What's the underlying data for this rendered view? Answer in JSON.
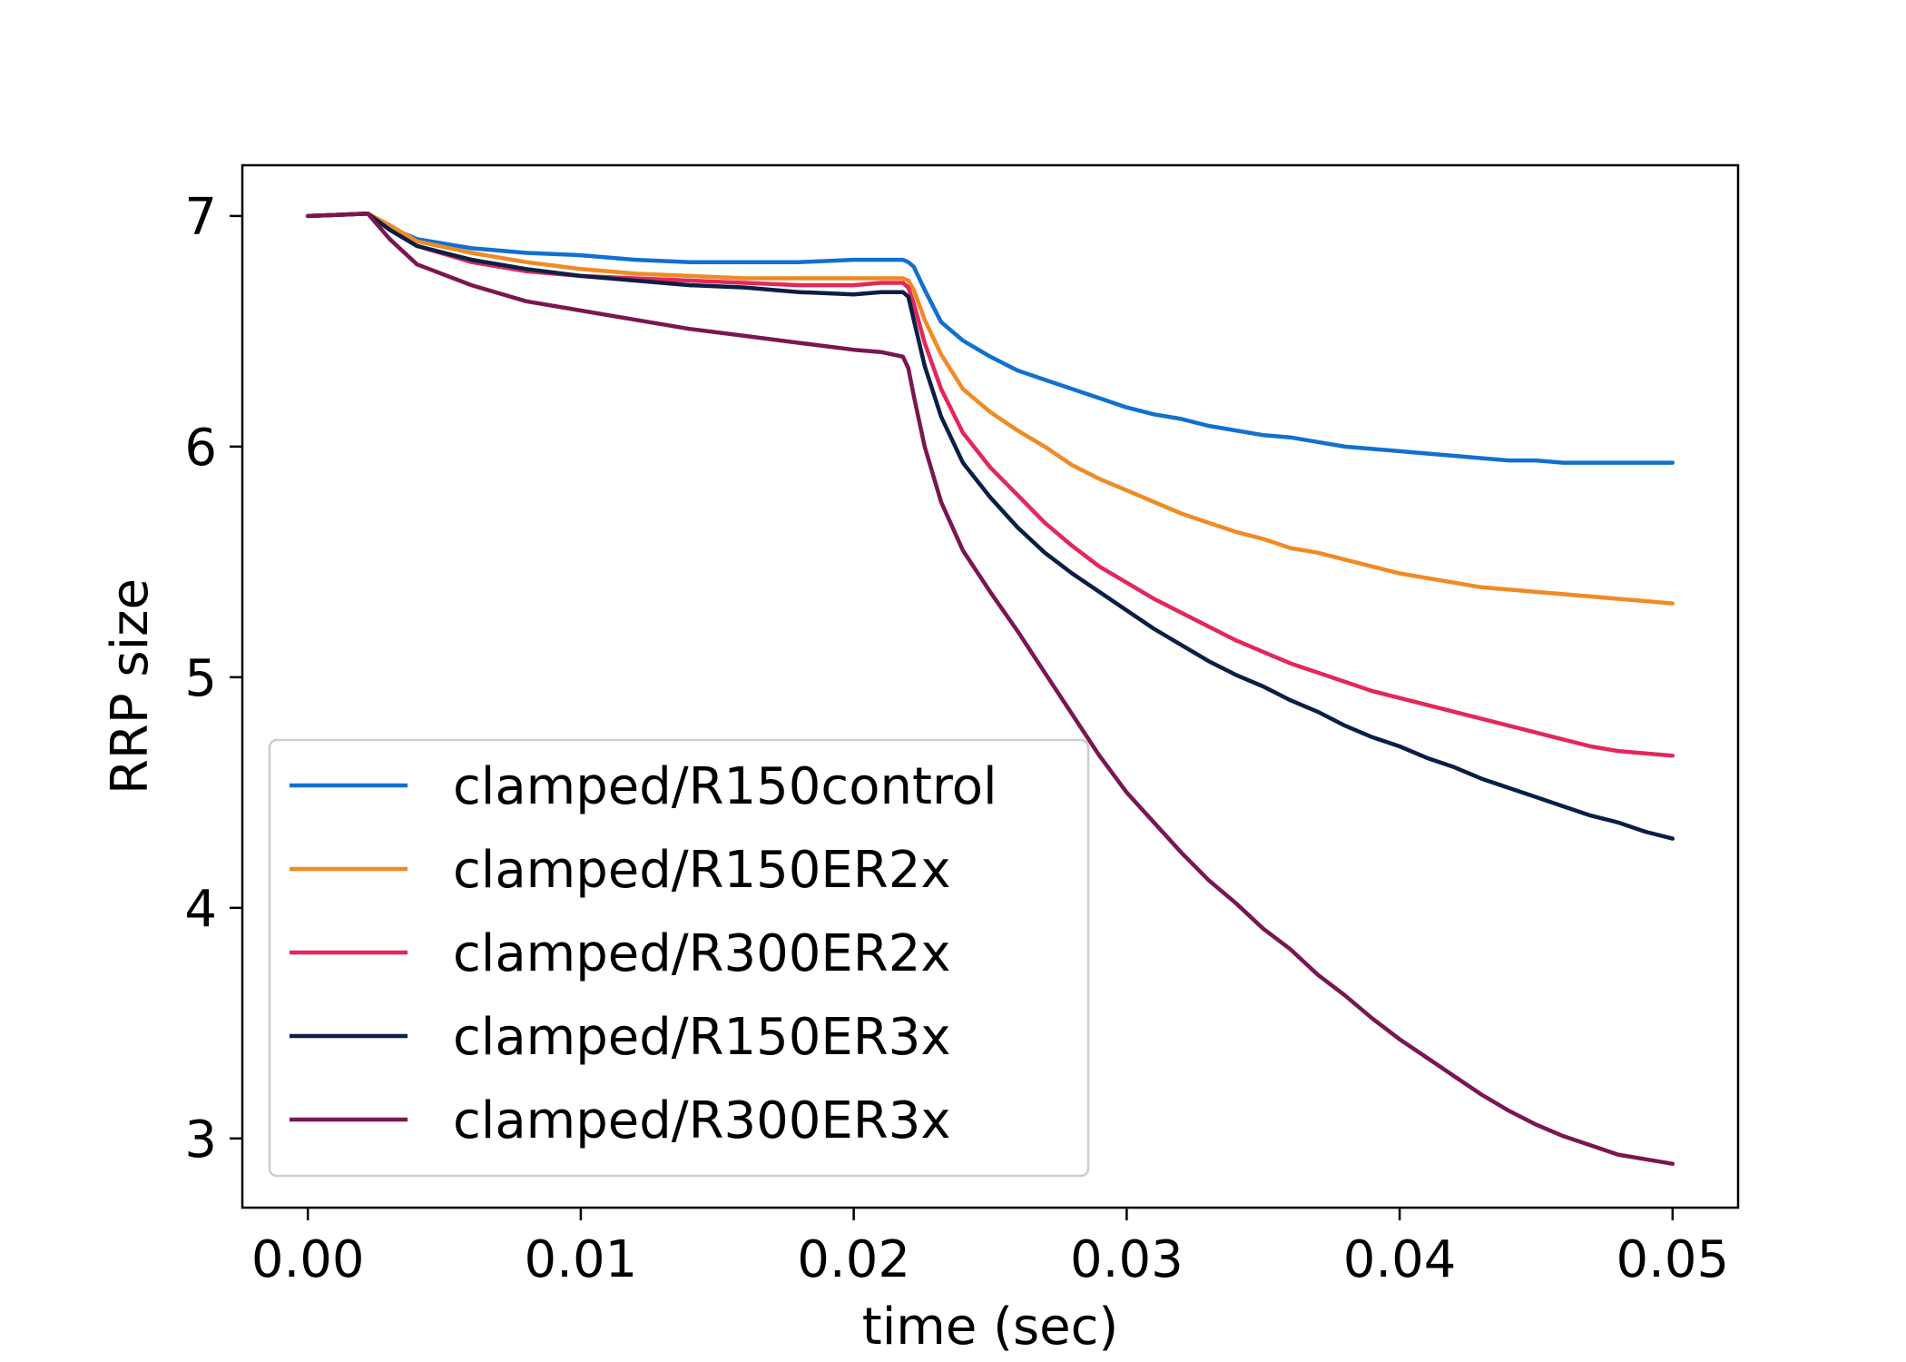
{
  "chart_data": {
    "type": "line",
    "title": "",
    "xlabel": "time (sec)",
    "ylabel": "RRP size",
    "xlim": [
      -0.0024,
      0.0524
    ],
    "ylim": [
      2.7,
      7.22
    ],
    "xticks": [
      0.0,
      0.01,
      0.02,
      0.03,
      0.04,
      0.05
    ],
    "xtick_labels": [
      "0.00",
      "0.01",
      "0.02",
      "0.03",
      "0.04",
      "0.05"
    ],
    "yticks": [
      3,
      4,
      5,
      6,
      7
    ],
    "ytick_labels": [
      "3",
      "4",
      "5",
      "6",
      "7"
    ],
    "grid": false,
    "legend_position": "lower-left",
    "series": [
      {
        "name": "clamped/R150control",
        "color": "#1170d0",
        "x": [
          0.0,
          0.0022,
          0.003,
          0.004,
          0.006,
          0.008,
          0.01,
          0.012,
          0.014,
          0.016,
          0.018,
          0.02,
          0.021,
          0.0218,
          0.022,
          0.0222,
          0.0226,
          0.0232,
          0.024,
          0.025,
          0.026,
          0.027,
          0.028,
          0.029,
          0.03,
          0.031,
          0.032,
          0.033,
          0.034,
          0.035,
          0.036,
          0.037,
          0.038,
          0.039,
          0.04,
          0.041,
          0.042,
          0.043,
          0.044,
          0.045,
          0.046,
          0.047,
          0.048,
          0.049,
          0.05
        ],
        "y": [
          7.0,
          7.01,
          6.95,
          6.9,
          6.86,
          6.84,
          6.83,
          6.81,
          6.8,
          6.8,
          6.8,
          6.81,
          6.81,
          6.81,
          6.8,
          6.78,
          6.68,
          6.54,
          6.46,
          6.39,
          6.33,
          6.29,
          6.25,
          6.21,
          6.17,
          6.14,
          6.12,
          6.09,
          6.07,
          6.05,
          6.04,
          6.02,
          6.0,
          5.99,
          5.98,
          5.97,
          5.96,
          5.95,
          5.94,
          5.94,
          5.93,
          5.93,
          5.93,
          5.93,
          5.93
        ]
      },
      {
        "name": "clamped/R150ER2x",
        "color": "#f08a24",
        "x": [
          0.0,
          0.0022,
          0.003,
          0.004,
          0.006,
          0.008,
          0.01,
          0.012,
          0.014,
          0.016,
          0.018,
          0.02,
          0.021,
          0.0218,
          0.022,
          0.0222,
          0.0226,
          0.0232,
          0.024,
          0.025,
          0.026,
          0.027,
          0.028,
          0.029,
          0.03,
          0.031,
          0.032,
          0.033,
          0.034,
          0.035,
          0.036,
          0.037,
          0.038,
          0.039,
          0.04,
          0.041,
          0.042,
          0.043,
          0.044,
          0.045,
          0.046,
          0.047,
          0.048,
          0.049,
          0.05
        ],
        "y": [
          7.0,
          7.01,
          6.96,
          6.89,
          6.84,
          6.8,
          6.77,
          6.75,
          6.74,
          6.73,
          6.73,
          6.73,
          6.73,
          6.73,
          6.72,
          6.68,
          6.55,
          6.4,
          6.25,
          6.15,
          6.07,
          6.0,
          5.92,
          5.86,
          5.81,
          5.76,
          5.71,
          5.67,
          5.63,
          5.6,
          5.56,
          5.54,
          5.51,
          5.48,
          5.45,
          5.43,
          5.41,
          5.39,
          5.38,
          5.37,
          5.36,
          5.35,
          5.34,
          5.33,
          5.32
        ]
      },
      {
        "name": "clamped/R300ER2x",
        "color": "#e3275c",
        "x": [
          0.0,
          0.0022,
          0.003,
          0.004,
          0.006,
          0.008,
          0.01,
          0.012,
          0.014,
          0.016,
          0.018,
          0.02,
          0.021,
          0.0218,
          0.022,
          0.0222,
          0.0226,
          0.0232,
          0.024,
          0.025,
          0.026,
          0.027,
          0.028,
          0.029,
          0.03,
          0.031,
          0.032,
          0.033,
          0.034,
          0.035,
          0.036,
          0.037,
          0.038,
          0.039,
          0.04,
          0.041,
          0.042,
          0.043,
          0.044,
          0.045,
          0.046,
          0.047,
          0.048,
          0.049,
          0.05
        ],
        "y": [
          7.0,
          7.01,
          6.94,
          6.87,
          6.8,
          6.76,
          6.74,
          6.73,
          6.72,
          6.71,
          6.7,
          6.7,
          6.71,
          6.71,
          6.69,
          6.62,
          6.45,
          6.25,
          6.06,
          5.91,
          5.79,
          5.67,
          5.57,
          5.48,
          5.41,
          5.34,
          5.28,
          5.22,
          5.16,
          5.11,
          5.06,
          5.02,
          4.98,
          4.94,
          4.91,
          4.88,
          4.85,
          4.82,
          4.79,
          4.76,
          4.73,
          4.7,
          4.68,
          4.67,
          4.66
        ]
      },
      {
        "name": "clamped/R150ER3x",
        "color": "#0b1e45",
        "x": [
          0.0,
          0.0022,
          0.003,
          0.004,
          0.006,
          0.008,
          0.01,
          0.012,
          0.014,
          0.016,
          0.018,
          0.02,
          0.021,
          0.0218,
          0.022,
          0.0222,
          0.0226,
          0.0232,
          0.024,
          0.025,
          0.026,
          0.027,
          0.028,
          0.029,
          0.03,
          0.031,
          0.032,
          0.033,
          0.034,
          0.035,
          0.036,
          0.037,
          0.038,
          0.039,
          0.04,
          0.041,
          0.042,
          0.043,
          0.044,
          0.045,
          0.046,
          0.047,
          0.048,
          0.049,
          0.05
        ],
        "y": [
          7.0,
          7.01,
          6.94,
          6.87,
          6.81,
          6.77,
          6.74,
          6.72,
          6.7,
          6.69,
          6.67,
          6.66,
          6.67,
          6.67,
          6.65,
          6.55,
          6.35,
          6.13,
          5.93,
          5.78,
          5.65,
          5.54,
          5.45,
          5.37,
          5.29,
          5.21,
          5.14,
          5.07,
          5.01,
          4.96,
          4.9,
          4.85,
          4.79,
          4.74,
          4.7,
          4.65,
          4.61,
          4.56,
          4.52,
          4.48,
          4.44,
          4.4,
          4.37,
          4.33,
          4.3
        ]
      },
      {
        "name": "clamped/R300ER3x",
        "color": "#7a1650",
        "x": [
          0.0,
          0.0022,
          0.003,
          0.004,
          0.006,
          0.008,
          0.01,
          0.012,
          0.014,
          0.016,
          0.018,
          0.02,
          0.021,
          0.0218,
          0.022,
          0.0222,
          0.0226,
          0.0232,
          0.024,
          0.025,
          0.026,
          0.027,
          0.028,
          0.029,
          0.03,
          0.031,
          0.032,
          0.033,
          0.034,
          0.035,
          0.036,
          0.037,
          0.038,
          0.039,
          0.04,
          0.041,
          0.042,
          0.043,
          0.044,
          0.045,
          0.046,
          0.047,
          0.048,
          0.049,
          0.05
        ],
        "y": [
          7.0,
          7.01,
          6.9,
          6.79,
          6.7,
          6.63,
          6.59,
          6.55,
          6.51,
          6.48,
          6.45,
          6.42,
          6.41,
          6.39,
          6.34,
          6.22,
          6.0,
          5.76,
          5.55,
          5.37,
          5.2,
          5.02,
          4.84,
          4.66,
          4.5,
          4.37,
          4.24,
          4.12,
          4.02,
          3.91,
          3.82,
          3.71,
          3.62,
          3.52,
          3.43,
          3.35,
          3.27,
          3.19,
          3.12,
          3.06,
          3.01,
          2.97,
          2.93,
          2.91,
          2.89
        ]
      }
    ]
  }
}
